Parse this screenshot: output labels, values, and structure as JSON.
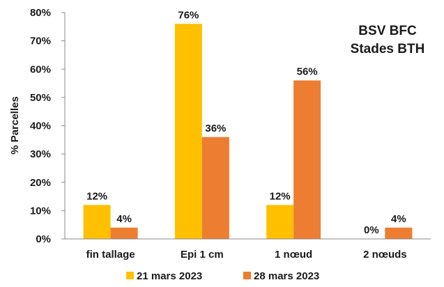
{
  "chart_data": {
    "type": "bar",
    "title_lines": [
      "BSV BFC",
      "Stades BTH"
    ],
    "xlabel": "",
    "ylabel": "% Parcelles",
    "ylim": [
      0,
      80
    ],
    "yticks": [
      "0%",
      "10%",
      "20%",
      "30%",
      "40%",
      "50%",
      "60%",
      "70%",
      "80%"
    ],
    "grid": false,
    "legend_position": "bottom",
    "categories": [
      "fin tallage",
      "Epi 1 cm",
      "1 nœud",
      "2 nœuds"
    ],
    "series": [
      {
        "name": "21 mars 2023",
        "color": "#FFC000",
        "values": [
          12,
          76,
          12,
          0
        ],
        "labels": [
          "12%",
          "76%",
          "12%",
          "0%"
        ]
      },
      {
        "name": "28 mars 2023",
        "color": "#ED7D31",
        "values": [
          4,
          36,
          56,
          4
        ],
        "labels": [
          "4%",
          "36%",
          "56%",
          "4%"
        ]
      }
    ]
  }
}
